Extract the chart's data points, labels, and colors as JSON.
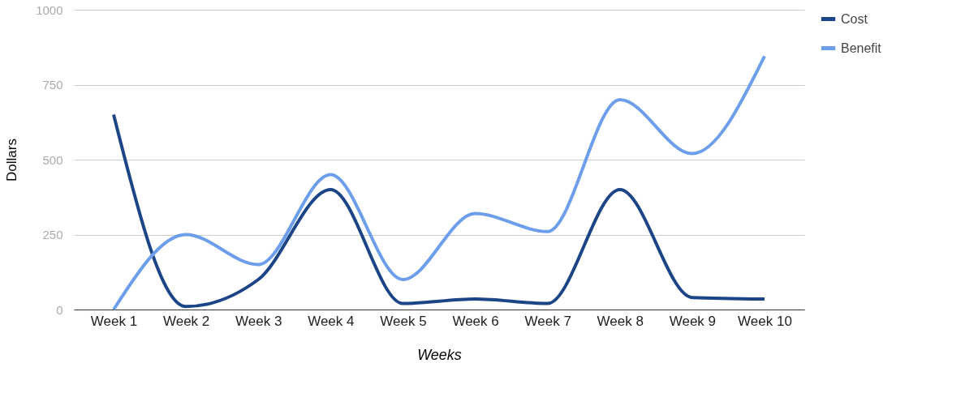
{
  "chart_data": {
    "type": "line",
    "xlabel": "Weeks",
    "ylabel": "Dollars",
    "categories": [
      "Week 1",
      "Week 2",
      "Week 3",
      "Week 4",
      "Week 5",
      "Week 6",
      "Week 7",
      "Week 8",
      "Week 9",
      "Week 10"
    ],
    "series": [
      {
        "name": "Cost",
        "color": "#1c4587",
        "values": [
          650,
          10,
          100,
          400,
          20,
          35,
          20,
          400,
          40,
          35
        ]
      },
      {
        "name": "Benefit",
        "color": "#6d9eeb",
        "values": [
          0,
          250,
          150,
          450,
          100,
          320,
          260,
          700,
          520,
          845
        ]
      }
    ],
    "ylim": [
      0,
      1000
    ],
    "yticks": [
      0,
      250,
      500,
      750,
      1000
    ],
    "grid": "y",
    "legend": "top right",
    "marker": "none",
    "line_style": "solid"
  }
}
